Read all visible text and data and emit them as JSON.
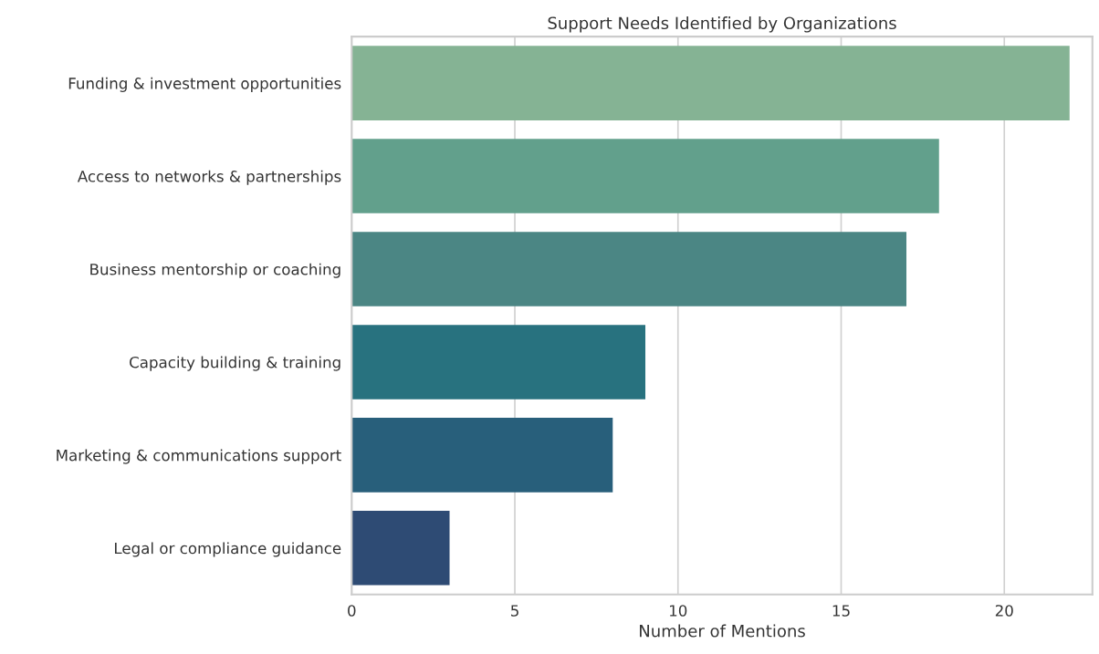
{
  "chart_data": {
    "type": "bar",
    "orientation": "horizontal",
    "title": "Support Needs Identified by Organizations",
    "xlabel": "Number of Mentions",
    "categories": [
      "Funding & investment opportunities",
      "Access to networks & partnerships",
      "Business mentorship or coaching",
      "Capacity building & training",
      "Marketing & communications support",
      "Legal or compliance guidance"
    ],
    "values": [
      22,
      18,
      17,
      9,
      8,
      3
    ],
    "colors": [
      "#85b394",
      "#62a08c",
      "#4b8684",
      "#28727f",
      "#285f7b",
      "#2e4b74"
    ],
    "xlim": [
      0,
      22.7
    ],
    "xticks": [
      0,
      5,
      10,
      15,
      20
    ],
    "grid": "x"
  }
}
